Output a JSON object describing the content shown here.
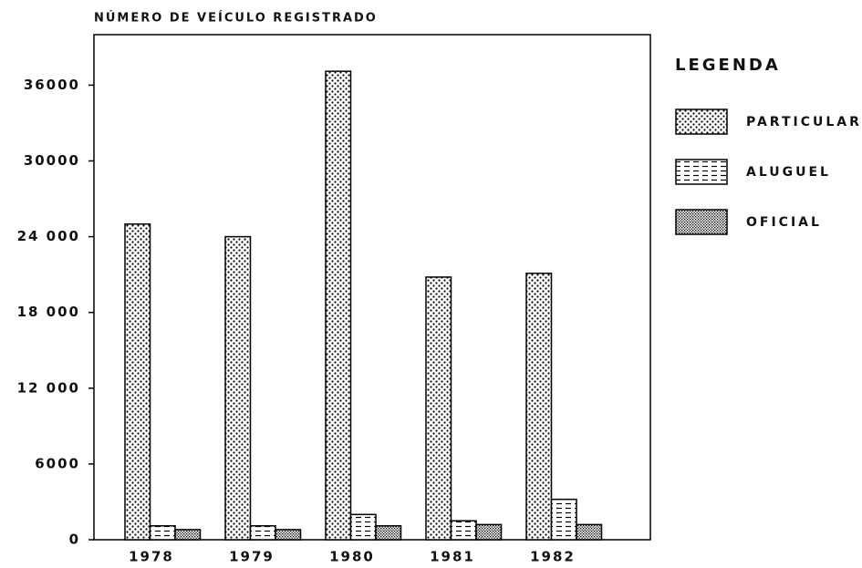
{
  "chart_data": {
    "type": "bar",
    "title": "NÚMERO DE VEÍCULO REGISTRADO",
    "legend_title": "LEGENDA",
    "categories": [
      "1978",
      "1979",
      "1980",
      "1981",
      "1982"
    ],
    "series": [
      {
        "name": "PARTICULAR",
        "color": "#000000",
        "pattern": "dots",
        "values": [
          25000,
          24000,
          37100,
          20800,
          21100
        ]
      },
      {
        "name": "ALUGUEL",
        "color": "#000000",
        "pattern": "dashes",
        "values": [
          1100,
          1100,
          2000,
          1500,
          3200
        ]
      },
      {
        "name": "OFICIAL",
        "color": "#000000",
        "pattern": "stipple",
        "values": [
          800,
          800,
          1100,
          1200,
          1200
        ]
      }
    ],
    "ylim": [
      0,
      40000
    ],
    "yticks": [
      0,
      6000,
      {
        "value": 12000,
        "label": "12 000"
      },
      {
        "value": 18000,
        "label": "18 000"
      },
      {
        "value": 24000,
        "label": "24 000"
      },
      30000,
      36000
    ],
    "grid": false,
    "legend": "right"
  }
}
